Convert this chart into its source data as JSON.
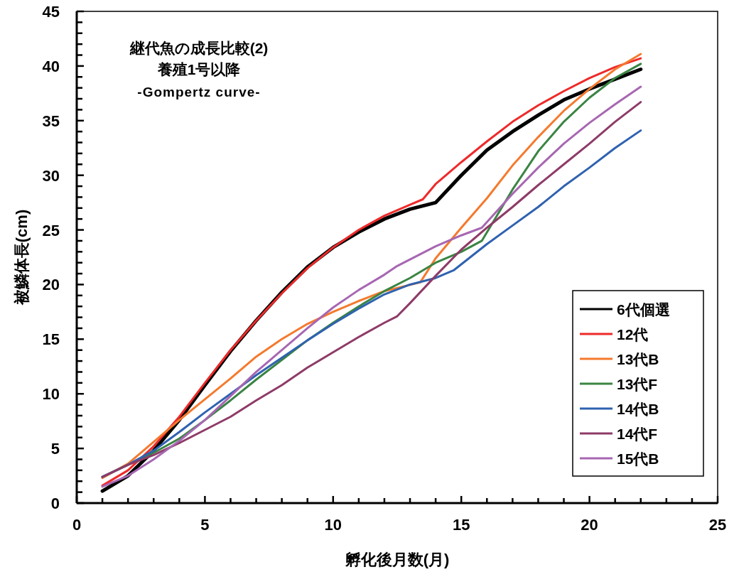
{
  "chart_data": {
    "type": "line",
    "title": "継代魚の成長比較(2)",
    "subtitle": "養殖1号以降",
    "annotations": [
      "-Gompertz curve-"
    ],
    "xlabel": "孵化後月数(月)",
    "ylabel": "被鱗体長(cm)",
    "xlim": [
      0,
      25
    ],
    "ylim": [
      0,
      45
    ],
    "xticks": [
      0,
      {
        "value": 1,
        "label": null
      },
      {
        "value": 2,
        "label": null
      },
      {
        "value": 3,
        "label": null
      },
      {
        "value": 4,
        "label": null
      },
      5,
      {
        "value": 6,
        "label": null
      },
      {
        "value": 7,
        "label": null
      },
      {
        "value": 8,
        "label": null
      },
      {
        "value": 9,
        "label": null
      },
      10,
      {
        "value": 11,
        "label": null
      },
      {
        "value": 12,
        "label": null
      },
      {
        "value": 13,
        "label": null
      },
      {
        "value": 14,
        "label": null
      },
      15,
      {
        "value": 16,
        "label": null
      },
      {
        "value": 17,
        "label": null
      },
      {
        "value": 18,
        "label": null
      },
      {
        "value": 19,
        "label": null
      },
      20,
      {
        "value": 21,
        "label": null
      },
      {
        "value": 22,
        "label": null
      },
      {
        "value": 23,
        "label": null
      },
      {
        "value": 24,
        "label": null
      },
      25
    ],
    "yticks": [
      0,
      {
        "value": 1,
        "label": null
      },
      {
        "value": 2,
        "label": null
      },
      {
        "value": 3,
        "label": null
      },
      {
        "value": 4,
        "label": null
      },
      5,
      {
        "value": 6,
        "label": null
      },
      {
        "value": 7,
        "label": null
      },
      {
        "value": 8,
        "label": null
      },
      {
        "value": 9,
        "label": null
      },
      10,
      {
        "value": 11,
        "label": null
      },
      {
        "value": 12,
        "label": null
      },
      {
        "value": 13,
        "label": null
      },
      {
        "value": 14,
        "label": null
      },
      15,
      {
        "value": 16,
        "label": null
      },
      {
        "value": 17,
        "label": null
      },
      {
        "value": 18,
        "label": null
      },
      {
        "value": 19,
        "label": null
      },
      20,
      {
        "value": 21,
        "label": null
      },
      {
        "value": 22,
        "label": null
      },
      {
        "value": 23,
        "label": null
      },
      {
        "value": 24,
        "label": null
      },
      25,
      {
        "value": 26,
        "label": null
      },
      {
        "value": 27,
        "label": null
      },
      {
        "value": 28,
        "label": null
      },
      {
        "value": 29,
        "label": null
      },
      30,
      {
        "value": 31,
        "label": null
      },
      {
        "value": 32,
        "label": null
      },
      {
        "value": 33,
        "label": null
      },
      {
        "value": 34,
        "label": null
      },
      35,
      {
        "value": 36,
        "label": null
      },
      {
        "value": 37,
        "label": null
      },
      {
        "value": 38,
        "label": null
      },
      {
        "value": 39,
        "label": null
      },
      40,
      {
        "value": 41,
        "label": null
      },
      {
        "value": 42,
        "label": null
      },
      {
        "value": 43,
        "label": null
      },
      {
        "value": 44,
        "label": null
      },
      45
    ],
    "grid": false,
    "legend": "bottom right",
    "marker": "none",
    "line_style": "solid",
    "series": [
      {
        "name": "6代個選",
        "color": "#000000",
        "x": [
          1,
          2,
          3,
          4,
          5,
          6,
          7,
          8,
          9,
          10,
          11,
          12,
          13,
          14,
          15,
          16,
          17,
          18,
          19,
          20,
          21,
          22
        ],
        "values": [
          1.1,
          2.5,
          4.8,
          7.6,
          10.8,
          13.9,
          16.7,
          19.3,
          21.6,
          23.4,
          24.8,
          26.0,
          26.9,
          27.5,
          30.0,
          32.3,
          34.0,
          35.5,
          36.9,
          37.9,
          38.8,
          39.7
        ]
      },
      {
        "name": "12代",
        "color": "#ee2a2a",
        "x": [
          1,
          2,
          3,
          4,
          5,
          6,
          7,
          8,
          9,
          10,
          11,
          12,
          13,
          13.5,
          14,
          15,
          16,
          17,
          18,
          19,
          20,
          21,
          22
        ],
        "values": [
          1.6,
          3.0,
          5.2,
          7.9,
          11.0,
          14.0,
          16.7,
          19.2,
          21.5,
          23.4,
          25.0,
          26.3,
          27.3,
          27.8,
          29.2,
          31.2,
          33.1,
          34.9,
          36.4,
          37.7,
          38.9,
          39.9,
          40.7
        ]
      },
      {
        "name": "13代B",
        "color": "#f47a2e",
        "x": [
          1,
          2,
          3,
          4,
          5,
          6,
          7,
          8,
          9,
          10,
          11,
          12,
          13.4,
          14,
          15,
          16,
          17,
          18,
          19,
          20,
          21,
          22
        ],
        "values": [
          2.3,
          3.6,
          5.6,
          7.6,
          9.5,
          11.4,
          13.4,
          15.0,
          16.4,
          17.5,
          18.5,
          19.4,
          20.2,
          22.4,
          25.2,
          27.9,
          30.9,
          33.5,
          35.9,
          37.9,
          39.7,
          41.1
        ]
      },
      {
        "name": "13代F",
        "color": "#3a8443",
        "x": [
          1,
          2,
          3,
          4,
          5,
          6,
          7,
          8,
          9,
          10,
          11,
          12,
          13,
          14,
          15,
          15.8,
          17,
          18,
          19,
          20,
          21,
          22
        ],
        "values": [
          2.4,
          3.5,
          4.6,
          5.9,
          7.6,
          9.4,
          11.3,
          13.1,
          14.9,
          16.5,
          18.0,
          19.4,
          20.6,
          22.0,
          23.0,
          24.0,
          28.7,
          32.2,
          34.9,
          37.1,
          38.9,
          40.2
        ]
      },
      {
        "name": "14代B",
        "color": "#2f62b0",
        "x": [
          1,
          2,
          3,
          4,
          5,
          6,
          7,
          8,
          9,
          10,
          11,
          12,
          13,
          14,
          14.7,
          16,
          17,
          18,
          19,
          20,
          21,
          22
        ],
        "values": [
          2.4,
          3.5,
          4.8,
          6.5,
          8.3,
          10.0,
          11.7,
          13.3,
          14.9,
          16.4,
          17.8,
          19.1,
          20.0,
          20.6,
          21.3,
          23.7,
          25.4,
          27.1,
          29.0,
          30.7,
          32.5,
          34.1
        ]
      },
      {
        "name": "14代F",
        "color": "#8e3b68",
        "x": [
          1,
          2,
          3,
          4,
          5,
          6,
          7,
          8,
          9,
          10,
          11,
          12,
          12.5,
          13,
          14,
          15,
          16,
          17,
          18,
          19,
          20,
          21,
          22
        ],
        "values": [
          2.4,
          3.5,
          4.4,
          5.5,
          6.7,
          7.9,
          9.4,
          10.8,
          12.4,
          13.8,
          15.2,
          16.5,
          17.1,
          18.3,
          20.8,
          23.2,
          25.2,
          27.1,
          29.1,
          31.0,
          32.9,
          34.9,
          36.7
        ]
      },
      {
        "name": "15代B",
        "color": "#a767b2",
        "x": [
          1,
          2,
          3,
          4,
          5,
          6,
          7,
          8,
          9,
          10,
          11,
          12,
          12.5,
          13,
          14,
          15,
          15.8,
          17,
          18,
          19,
          20,
          21,
          22
        ],
        "values": [
          1.5,
          2.5,
          4.0,
          5.7,
          7.6,
          9.8,
          12.0,
          14.0,
          16.0,
          17.9,
          19.5,
          20.9,
          21.7,
          22.3,
          23.5,
          24.5,
          25.2,
          28.3,
          30.7,
          32.9,
          34.8,
          36.5,
          38.1
        ]
      }
    ]
  }
}
